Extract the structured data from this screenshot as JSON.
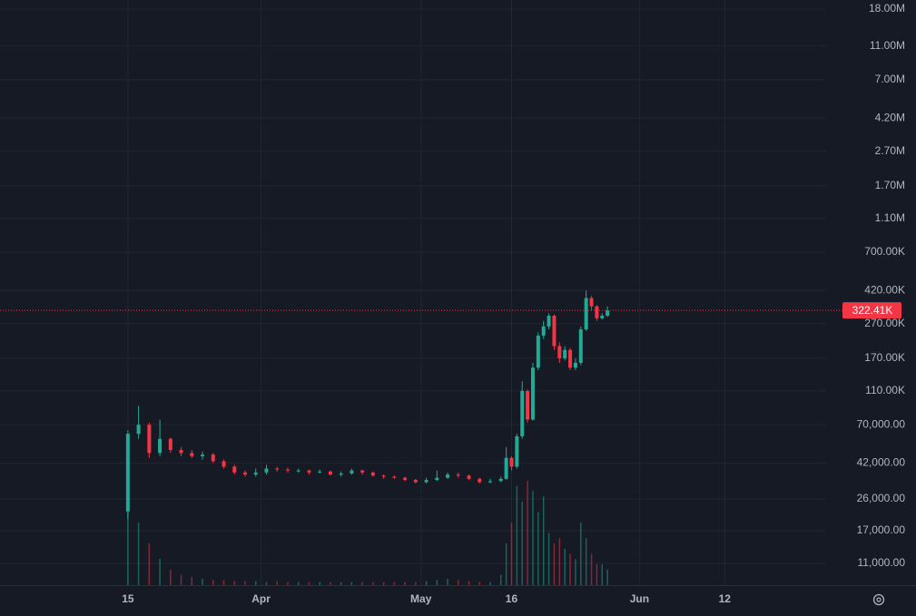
{
  "chart_data": {
    "type": "candlestick",
    "log_scale": true,
    "grid": true,
    "up_color": "#22ab94",
    "down_color": "#f23645",
    "x": [
      0,
      2,
      4,
      6,
      8,
      10,
      12,
      14,
      16,
      18,
      20,
      22,
      24,
      26,
      28,
      30,
      32,
      34,
      36,
      38,
      40,
      42,
      44,
      46,
      48,
      50,
      52,
      54,
      56,
      58,
      60,
      62,
      64,
      66,
      68,
      70,
      71,
      72,
      73,
      74,
      75,
      76,
      77,
      78,
      79,
      80,
      81,
      82,
      83,
      84,
      85,
      86,
      87,
      88,
      89,
      90
    ],
    "open": [
      22000,
      62000,
      70000,
      48000,
      58000,
      50000,
      48000,
      46000,
      47000,
      43000,
      40000,
      37000,
      36000,
      37000,
      39000,
      38500,
      38000,
      38000,
      37000,
      37500,
      36000,
      36500,
      38000,
      37000,
      35500,
      35000,
      34500,
      33500,
      32500,
      33500,
      34500,
      36000,
      35500,
      34000,
      32500,
      33000,
      34000,
      45000,
      40000,
      60000,
      110000,
      75000,
      150000,
      230000,
      260000,
      300000,
      200000,
      170000,
      190000,
      150000,
      160000,
      250000,
      380000,
      340000,
      290000,
      300000
    ],
    "high": [
      65000,
      90000,
      72000,
      75000,
      59000,
      52000,
      50000,
      49000,
      48000,
      44000,
      41000,
      38000,
      39000,
      41000,
      40000,
      39500,
      39000,
      38500,
      38500,
      38000,
      37500,
      39000,
      38500,
      37500,
      36000,
      35500,
      35000,
      34000,
      34500,
      38000,
      37000,
      37000,
      36000,
      34500,
      34000,
      35000,
      52000,
      46000,
      62000,
      125000,
      112000,
      160000,
      240000,
      280000,
      310000,
      305000,
      210000,
      200000,
      195000,
      170000,
      260000,
      420000,
      390000,
      345000,
      310000,
      340000
    ],
    "low": [
      20000,
      58000,
      45000,
      46000,
      48000,
      46000,
      45000,
      44000,
      42000,
      39000,
      36000,
      35000,
      35000,
      36000,
      37500,
      37000,
      37000,
      36000,
      36500,
      35500,
      35000,
      36000,
      36000,
      35000,
      34000,
      34000,
      33000,
      32000,
      32000,
      33000,
      34000,
      34500,
      33500,
      32000,
      32000,
      32500,
      33500,
      38000,
      39000,
      58000,
      72000,
      74000,
      145000,
      220000,
      250000,
      190000,
      160000,
      165000,
      145000,
      145000,
      155000,
      245000,
      320000,
      280000,
      285000,
      295000
    ],
    "close": [
      62000,
      70000,
      48000,
      58000,
      50000,
      48000,
      46000,
      47000,
      43000,
      40000,
      37000,
      36000,
      37000,
      39000,
      38500,
      38000,
      38000,
      37000,
      37500,
      36000,
      36500,
      38000,
      37000,
      35500,
      35000,
      34500,
      33500,
      32500,
      33500,
      34500,
      36000,
      35500,
      34000,
      32500,
      33000,
      34000,
      45000,
      40000,
      60000,
      110000,
      75000,
      150000,
      230000,
      260000,
      300000,
      200000,
      170000,
      190000,
      150000,
      160000,
      250000,
      380000,
      340000,
      290000,
      300000,
      322410
    ],
    "volume": [
      90,
      60,
      40,
      25,
      15,
      10,
      8,
      6,
      5,
      5,
      4,
      4,
      4,
      3,
      4,
      3,
      3,
      3,
      3,
      3,
      3,
      3,
      3,
      3,
      3,
      3,
      3,
      3,
      4,
      5,
      6,
      5,
      4,
      3,
      3,
      10,
      40,
      60,
      95,
      80,
      100,
      90,
      70,
      85,
      50,
      40,
      45,
      35,
      30,
      25,
      60,
      45,
      30,
      20,
      20,
      15
    ],
    "volume_lim": [
      0,
      100
    ],
    "xlim": [
      -24,
      138.7
    ],
    "xticks": [
      {
        "value": 0,
        "label": "15"
      },
      {
        "value": 25,
        "label": "Apr"
      },
      {
        "value": 55,
        "label": "May"
      },
      {
        "value": 72,
        "label": "16"
      },
      {
        "value": 96,
        "label": "Jun"
      },
      {
        "value": 112,
        "label": "12"
      }
    ],
    "ylim": [
      8225,
      20300000
    ],
    "yticks": [
      {
        "value": 11000,
        "label": "11,000.00"
      },
      {
        "value": 17000,
        "label": "17,000.00"
      },
      {
        "value": 26000,
        "label": "26,000.00"
      },
      {
        "value": 42000,
        "label": "42,000.00"
      },
      {
        "value": 70000,
        "label": "70,000.00"
      },
      {
        "value": 110000,
        "label": "110.00K"
      },
      {
        "value": 170000,
        "label": "170.00K"
      },
      {
        "value": 270000,
        "label": "270.00K"
      },
      {
        "value": 420000,
        "label": "420.00K"
      },
      {
        "value": 700000,
        "label": "700.00K"
      },
      {
        "value": 1100000,
        "label": "1.10M"
      },
      {
        "value": 1700000,
        "label": "1.70M"
      },
      {
        "value": 2700000,
        "label": "2.70M"
      },
      {
        "value": 4200000,
        "label": "4.20M"
      },
      {
        "value": 7000000,
        "label": "7.00M"
      },
      {
        "value": 11000000,
        "label": "11.00M"
      },
      {
        "value": 18000000,
        "label": "18.00M"
      }
    ],
    "last_price": {
      "value": 322410,
      "label": "322.41K"
    }
  }
}
